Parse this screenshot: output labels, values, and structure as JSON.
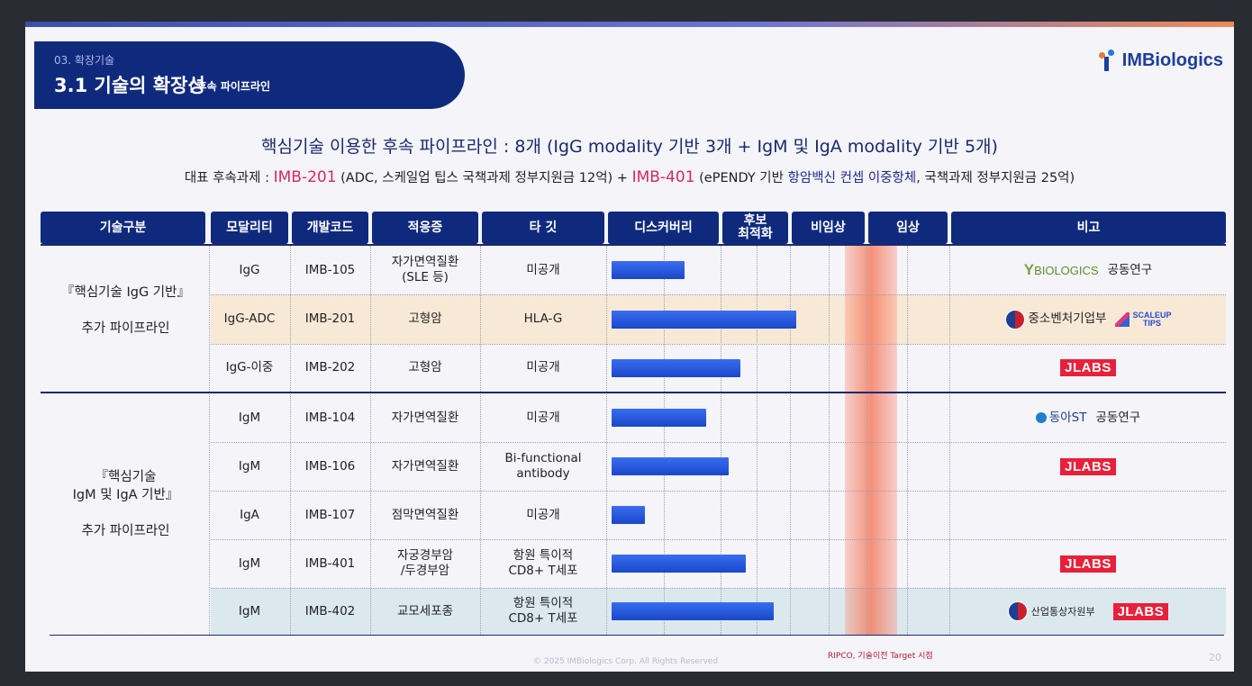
{
  "header": {
    "section_num": "03. 확장기술",
    "title": "3.1 기술의 확장성",
    "subtitle": "| 후속 파이프라인",
    "logo_text": "IMBiologics"
  },
  "headline": {
    "prefix": "핵심기술 이용한 후속 파이프라인 : 8개 ",
    "suffix": "(IgG modality 기반 3개 + IgM 및 IgA modality 기반 5개)"
  },
  "subline": {
    "label": "대표 후속과제 : ",
    "code1": "IMB-201",
    "detail1": " (ADC, 스케일업 팁스 국책과제 정부지원금 12억) + ",
    "code2": "IMB-401",
    "detail2a": " (ePENDY 기반 ",
    "detail2b": "항암백신 컨셉 이중항체",
    "detail2c": ", 국책과제 정부지원금 25억)"
  },
  "table": {
    "headers": [
      "기술구분",
      "모달리티",
      "개발코드",
      "적응증",
      "타 깃",
      "디스커버리",
      "후보\n최적화",
      "비임상",
      "임상",
      "비고"
    ],
    "groups": [
      "『핵심기술 IgG 기반』\n\n추가 파이프라인",
      "『핵심기술\nIgM 및 IgA 기반』\n\n추가 파이프라인"
    ],
    "rows": [
      {
        "modality": "IgG",
        "code": "IMB-105",
        "indication": "자가면역질환\n(SLE 등)",
        "target": "미공개",
        "progress": 0.13
      },
      {
        "modality": "IgG-ADC",
        "code": "IMB-201",
        "indication": "고형암",
        "target": "HLA-G",
        "progress": 0.33
      },
      {
        "modality": "IgG-이중",
        "code": "IMB-202",
        "indication": "고형암",
        "target": "미공개",
        "progress": 0.23
      },
      {
        "modality": "IgM",
        "code": "IMB-104",
        "indication": "자가면역질환",
        "target": "미공개",
        "progress": 0.17
      },
      {
        "modality": "IgM",
        "code": "IMB-106",
        "indication": "자가면역질환",
        "target": "Bi-functional\nantibody",
        "progress": 0.21
      },
      {
        "modality": "IgA",
        "code": "IMB-107",
        "indication": "점막면역질환",
        "target": "미공개",
        "progress": 0.06
      },
      {
        "modality": "IgM",
        "code": "IMB-401",
        "indication": "자궁경부암\n/두경부암",
        "target": "항원 특이적\nCD8+ T세포",
        "progress": 0.24
      },
      {
        "modality": "IgM",
        "code": "IMB-402",
        "indication": "교모세포종",
        "target": "항원 특이적\nCD8+ T세포",
        "progress": 0.29
      }
    ],
    "notes": {
      "row1_partner": "BIOLOGICS",
      "row1_collab": "공동연구",
      "row2_gov": "중소벤처기업부",
      "row2_scaleup": "SCALEUP\nTIPS",
      "jlabs": "JLABS",
      "row4_partner": "동아ST",
      "row4_collab": "공동연구",
      "row8_gov": "산업통상자원부"
    }
  },
  "footer": {
    "note": "RIPCO, 기술이전 Target 시점",
    "copyright": "© 2025 IMBiologics Corp. All Rights Reserved",
    "page": "20"
  },
  "colors": {
    "navy": "#0f2a7d",
    "accent_red": "#d42a5a",
    "bar_blue": "#1a47c9",
    "clinic_highlight": "#f5785a"
  }
}
